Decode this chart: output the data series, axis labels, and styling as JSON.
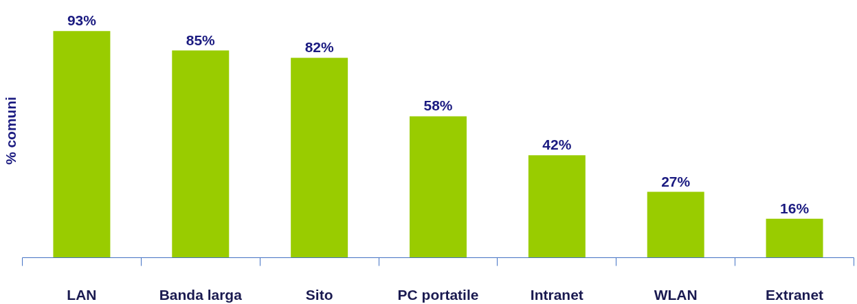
{
  "chart_data": {
    "type": "bar",
    "ylabel": "% comuni",
    "categories": [
      "LAN",
      "Banda larga",
      "Sito",
      "PC portatile",
      "Intranet",
      "WLAN",
      "Extranet"
    ],
    "values": [
      93,
      85,
      82,
      58,
      42,
      27,
      16
    ],
    "value_labels": [
      "93%",
      "85%",
      "82%",
      "58%",
      "42%",
      "27%",
      "16%"
    ],
    "color": "#99cc00",
    "grid": false
  }
}
